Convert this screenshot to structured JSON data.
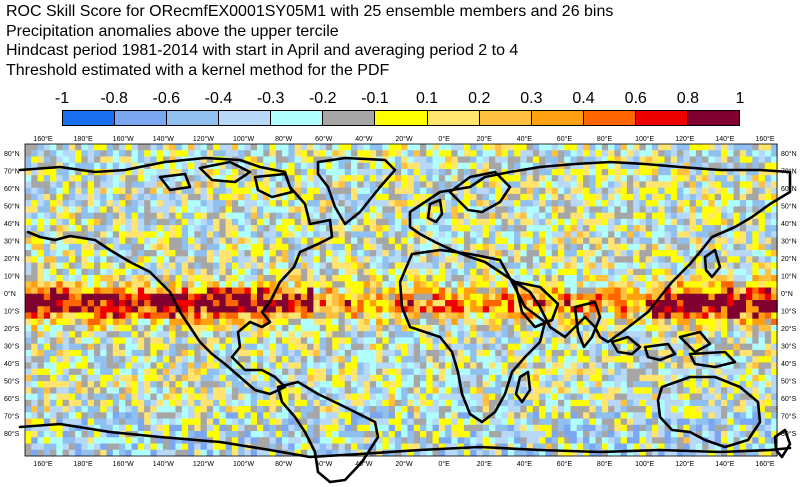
{
  "titles": [
    "ROC Skill Score for ORecmfEX0001SY05M1 with 25 ensemble members and 26 bins",
    "Precipitation anomalies above the upper tercile",
    "Hindcast period 1981-2014 with start in April and averaging period  2 to  4",
    "Threshold estimated with a kernel method for the PDF"
  ],
  "colorbar": {
    "labels": [
      "-1",
      "-0.8",
      "-0.6",
      "-0.4",
      "-0.3",
      "-0.2",
      "-0.1",
      "0.1",
      "0.2",
      "0.3",
      "0.4",
      "0.6",
      "0.8",
      "1"
    ],
    "colors": [
      "#1a1aff",
      "#1a6fef",
      "#7aa6f2",
      "#8fc0ef",
      "#b8d8f8",
      "#b0ffff",
      "#a6a6a6",
      "#ffff00",
      "#ffe470",
      "#ffc040",
      "#ffa010",
      "#ff6600",
      "#ee0000",
      "#800030"
    ]
  },
  "map": {
    "lon_labels_top": [
      "160°E",
      "180°E",
      "160°W",
      "140°W",
      "120°W",
      "100°W",
      "80°W",
      "60°W",
      "40°W",
      "20°W",
      "0°E",
      "20°E",
      "40°E",
      "60°E",
      "80°E",
      "100°E",
      "120°E",
      "140°E",
      "160°E"
    ],
    "lon_labels_bottom": [
      "160°E",
      "180°E",
      "160°W",
      "140°W",
      "120°W",
      "100°W",
      "80°W",
      "60°W",
      "40°W",
      "20°W",
      "0°E",
      "20°E",
      "40°E",
      "60°E",
      "80°E",
      "100°E",
      "120°E",
      "140°E",
      "160°E"
    ],
    "lat_labels": [
      "80°N",
      "70°N",
      "60°N",
      "50°N",
      "40°N",
      "30°N",
      "20°N",
      "10°N",
      "0°N",
      "10°S",
      "20°S",
      "30°S",
      "40°S",
      "50°S",
      "60°S",
      "70°S",
      "80°S"
    ],
    "grid": "lat-lon cells",
    "coastline_color": "#000000",
    "description_colors": {
      "skill_high": "#800030",
      "skill_neutral": "#a6a6a6"
    }
  }
}
